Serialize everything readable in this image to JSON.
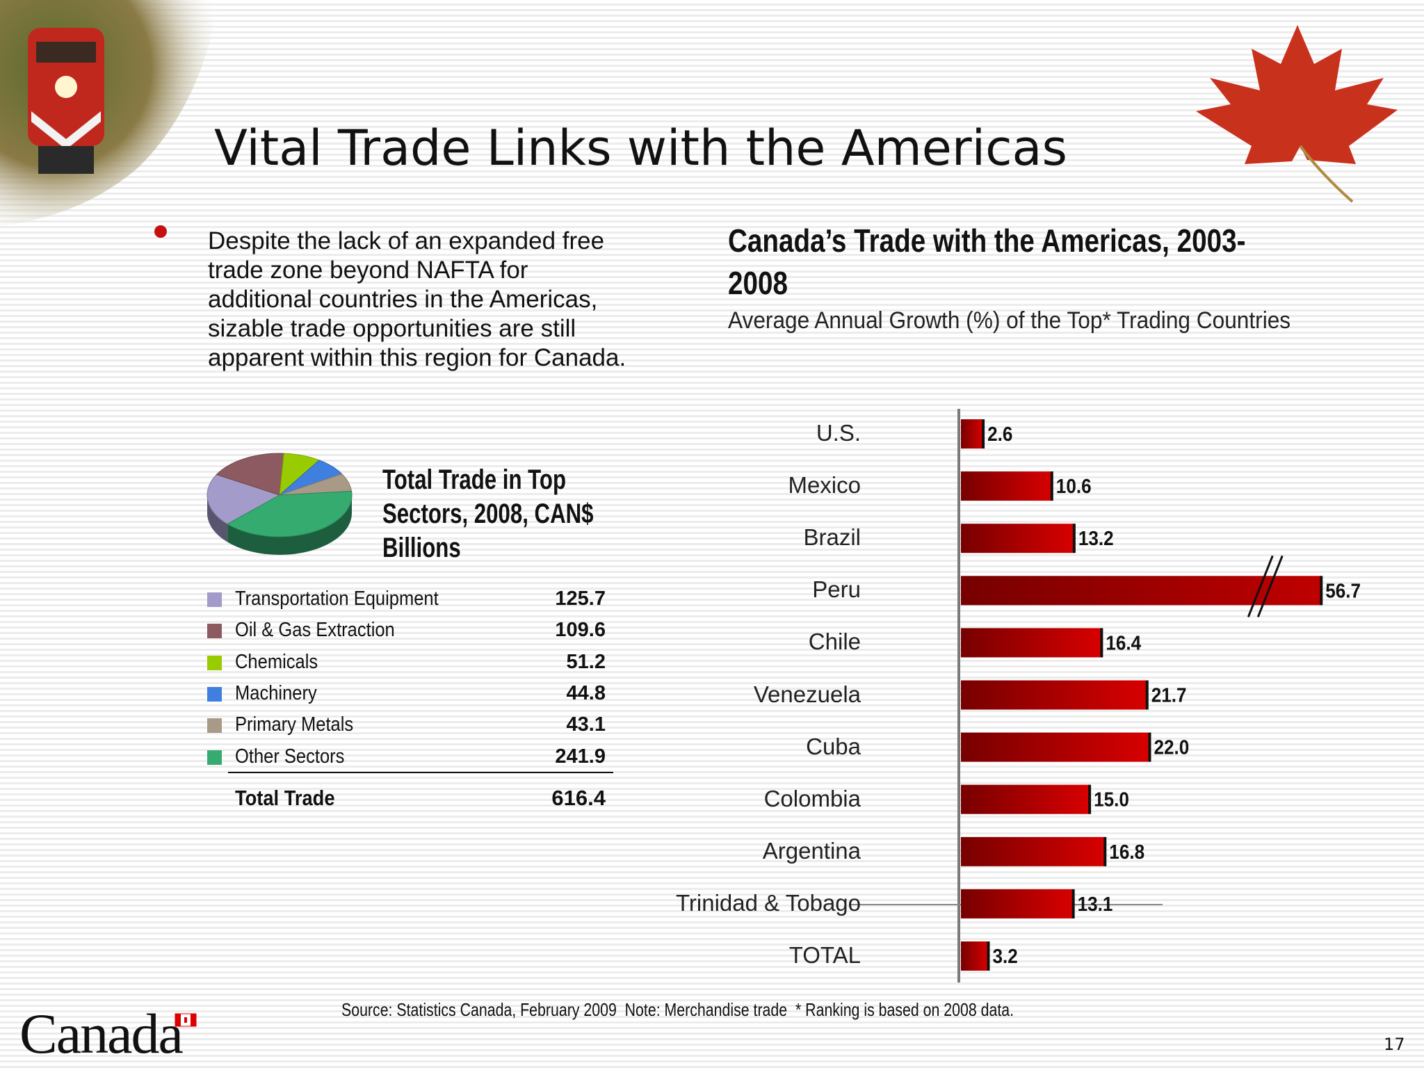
{
  "slide": {
    "title": "Vital Trade Links with the Americas",
    "bullet": "Despite the lack of an expanded free trade zone beyond NAFTA for additional countries in the Americas, sizable trade opportunities are still apparent within this region for Canada.",
    "source": "Source: Statistics Canada, February 2009  Note: Merchandise trade  * Ranking is based on 2008 data.",
    "logo": "Canada",
    "page_number": "17"
  },
  "chart_data": [
    {
      "type": "pie",
      "title": "Total Trade in Top Sectors, 2008, CAN$ Billions",
      "categories": [
        "Transportation Equipment",
        "Oil & Gas Extraction",
        "Chemicals",
        "Machinery",
        "Primary Metals",
        "Other Sectors"
      ],
      "values": [
        125.7,
        109.6,
        51.2,
        44.8,
        43.1,
        241.9
      ],
      "colors": [
        "#a39bc9",
        "#8c5a60",
        "#99cc00",
        "#3f7fe0",
        "#a89a86",
        "#35ab70"
      ],
      "total_label": "Total Trade",
      "total": 616.4
    },
    {
      "type": "bar",
      "orientation": "horizontal",
      "title": "Canada’s Trade with the Americas, 2003-2008",
      "subtitle": "Average Annual Growth (%) of the Top* Trading Countries",
      "categories": [
        "U.S.",
        "Mexico",
        "Brazil",
        "Peru",
        "Chile",
        "Venezuela",
        "Cuba",
        "Colombia",
        "Argentina",
        "Trinidad & Tobago",
        "TOTAL"
      ],
      "values": [
        2.6,
        10.6,
        13.2,
        56.7,
        16.4,
        21.7,
        22.0,
        15.0,
        16.8,
        13.1,
        3.2
      ],
      "value_labels": [
        "2.6",
        "10.6",
        "13.2",
        "56.7",
        "16.4",
        "21.7",
        "22.0",
        "15.0",
        "16.8",
        "13.1",
        "3.2"
      ],
      "color": "#d80000",
      "xlim": [
        0,
        42
      ],
      "axis_break": true
    }
  ]
}
